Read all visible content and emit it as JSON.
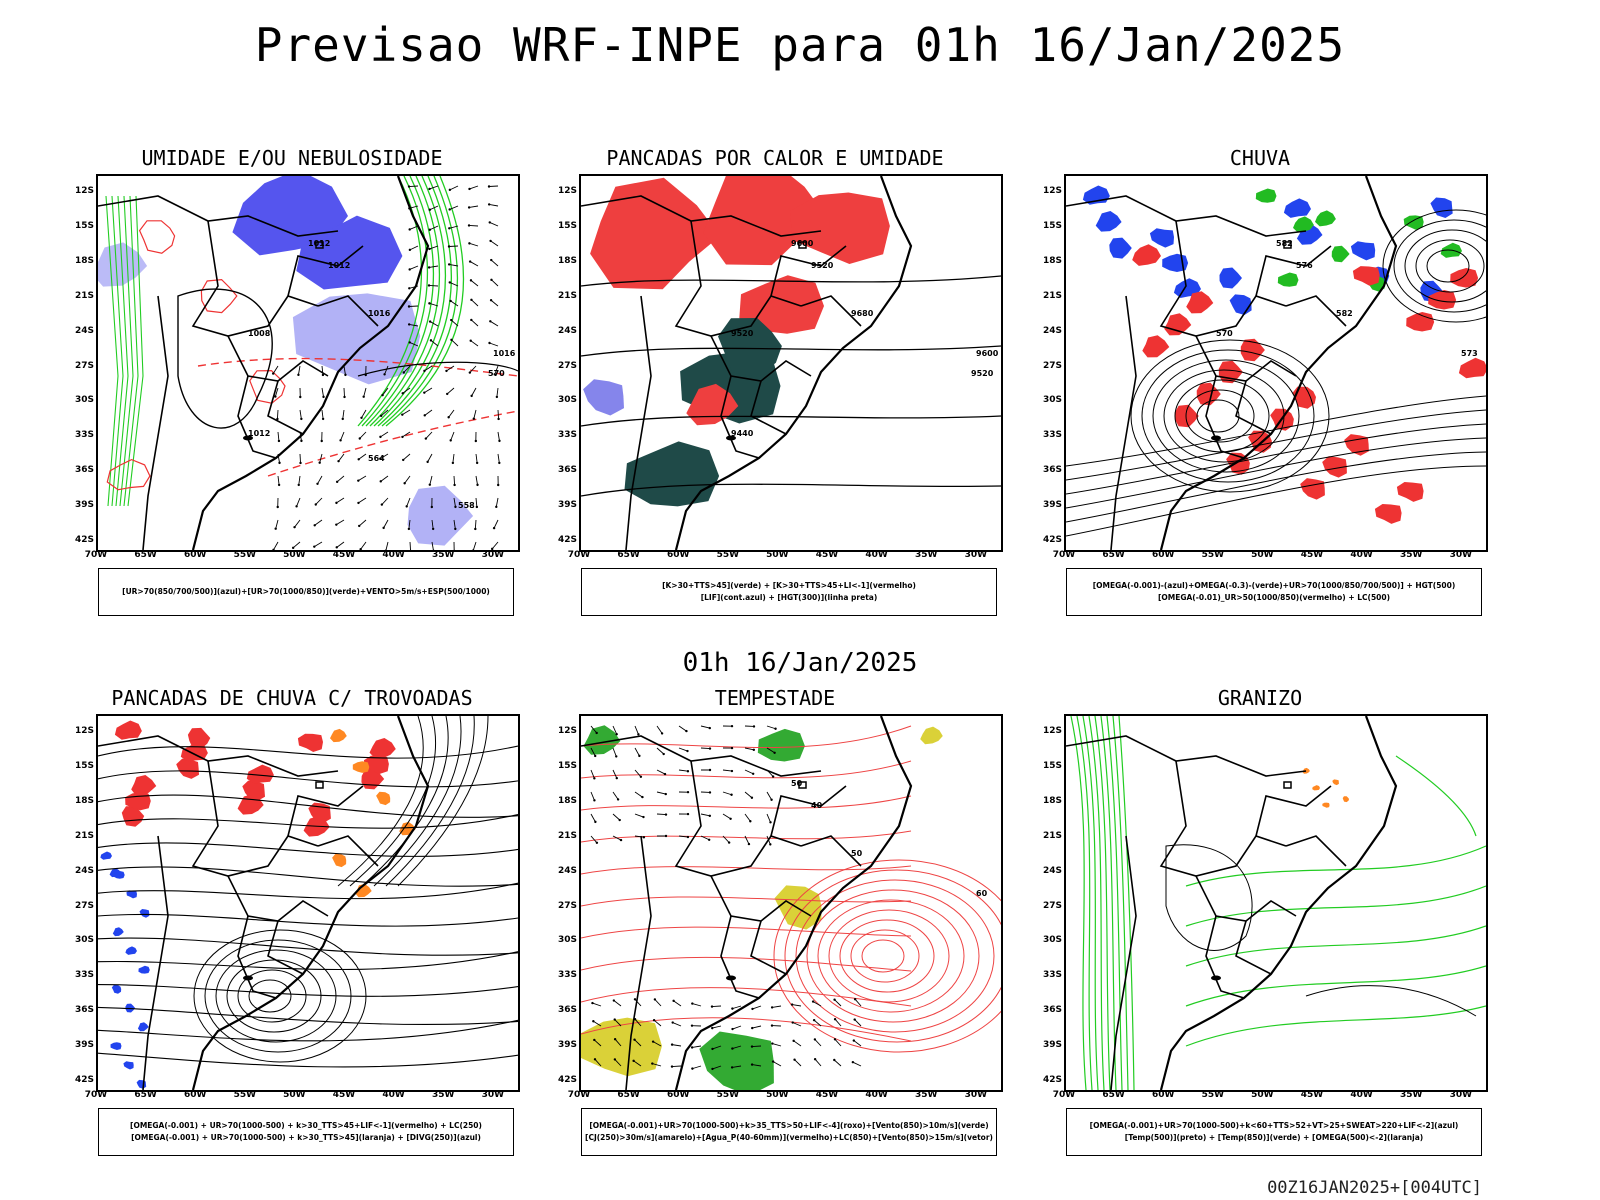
{
  "title": "Previsao WRF-INPE  para 01h 16/Jan/2025",
  "mid_time": "01h 16/Jan/2025",
  "footer": "00Z16JAN2025+[004UTC]",
  "lat_labels": [
    "12S",
    "15S",
    "18S",
    "21S",
    "24S",
    "27S",
    "30S",
    "33S",
    "36S",
    "39S",
    "42S"
  ],
  "lon_labels": [
    "70W",
    "65W",
    "60W",
    "55W",
    "50W",
    "45W",
    "40W",
    "35W",
    "30W"
  ],
  "panels": [
    {
      "title": "UMIDADE E/OU NEBULOSIDADE",
      "legend": [
        "[UR>70(850/700/500)](azul)+[UR>70(1000/850)](verde)+VENTO>5m/s+ESP(500/1000)"
      ],
      "contour_labels": [
        "1012",
        "1012",
        "1016",
        "1016",
        "1008",
        "1012",
        "570",
        "564",
        "558"
      ],
      "colors": {
        "blue": "#5555ee",
        "light_blue": "#aaaaf5",
        "green": "#22cc22",
        "red": "#ee3333"
      }
    },
    {
      "title": "PANCADAS POR CALOR E UMIDADE",
      "legend": [
        "[K>30+TTS>45](verde) + [K>30+TTS>45+LI<-1](vermelho)",
        "[LIF](cont.azul) + [HGT(300)](linha preta)"
      ],
      "contour_labels": [
        "9600",
        "9520",
        "9680",
        "9600",
        "9520",
        "9440",
        "9520"
      ],
      "colors": {
        "red": "#ee3f3f",
        "dark_green": "#1f4a48",
        "blue": "#3333dd"
      }
    },
    {
      "title": "CHUVA",
      "legend": [
        "[OMEGA(-0.001)-(azul)+OMEGA(-0.3)-(verde)+UR>70(1000/850/700/500)] + HGT(500)",
        "[OMEGA(-0.01)_UR>50(1000/850)(vermelho) + LC(500)"
      ],
      "contour_labels": [
        "582",
        "576",
        "582",
        "573",
        "570"
      ],
      "colors": {
        "blue": "#2244ee",
        "green": "#22bb22",
        "red": "#ee3333"
      }
    },
    {
      "title": "PANCADAS DE CHUVA C/ TROVOADAS",
      "legend": [
        "[OMEGA(-0.001) + UR>70(1000-500) + k>30_TTS>45+LIF<-1](vermelho) + LC(250)",
        "[OMEGA(-0.001) + UR>70(1000-500) + k>30_TTS>45](laranja) + [DIVG(250)](azul)"
      ],
      "contour_labels": [],
      "colors": {
        "red": "#ee3333",
        "orange": "#ff8822",
        "blue": "#2244ee"
      }
    },
    {
      "title": "TEMPESTADE",
      "legend": [
        "[OMEGA(-0.001)+UR>70(1000-500)+k>35_TTS>50+LIF<-4](roxo)+[Vento(850)>10m/s](verde)",
        "[CJ(250)>30m/s](amarelo)+[Agua_P(40-60mm)](vermelho)+LC(850)+[Vento(850)>15m/s](vetor)"
      ],
      "contour_labels": [
        "50",
        "40",
        "50",
        "60"
      ],
      "colors": {
        "yellow": "#d6cc22",
        "green": "#33aa33",
        "red": "#ee4444"
      }
    },
    {
      "title": "GRANIZO",
      "legend": [
        "[OMEGA(-0.001)+UR>70(1000-500)+k<60+TTS>52+VT>25+SWEAT>220+LIF<-2](azul)",
        "[Temp(500)](preto) + [Temp(850)](verde) + [OMEGA(500)<-2](laranja)"
      ],
      "contour_labels": [],
      "colors": {
        "green": "#22cc22",
        "orange": "#ff8822"
      }
    }
  ]
}
